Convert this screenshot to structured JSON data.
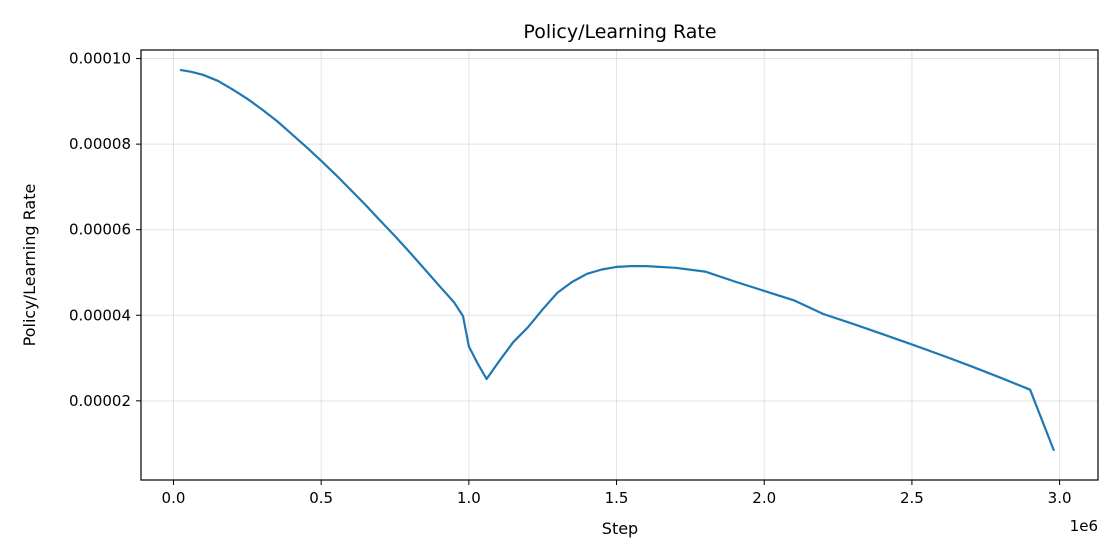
{
  "chart_data": {
    "type": "line",
    "title": "Policy/Learning Rate",
    "xlabel": "Step",
    "ylabel": "Policy/Learning Rate",
    "x_offset_label": "1e6",
    "xlim": [
      -110000,
      3130000
    ],
    "ylim": [
      1.5e-06,
      0.000102
    ],
    "x_ticks": [
      0,
      500000,
      1000000,
      1500000,
      2000000,
      2500000,
      3000000
    ],
    "x_tick_labels": [
      "0.0",
      "0.5",
      "1.0",
      "1.5",
      "2.0",
      "2.5",
      "3.0"
    ],
    "y_ticks": [
      2e-05,
      4e-05,
      6e-05,
      8e-05,
      0.0001
    ],
    "y_tick_labels": [
      "0.00002",
      "0.00004",
      "0.00006",
      "0.00008",
      "0.00010"
    ],
    "grid": true,
    "color": "#1f77b4",
    "series": [
      {
        "x": [
          25000,
          60000,
          100000,
          150000,
          200000,
          250000,
          300000,
          350000,
          400000,
          450000,
          500000,
          550000,
          600000,
          650000,
          700000,
          750000,
          800000,
          850000,
          900000,
          950000,
          980000,
          1000000,
          1030000,
          1060000,
          1100000,
          1150000,
          1200000,
          1250000,
          1300000,
          1350000,
          1400000,
          1450000,
          1500000,
          1550000,
          1600000,
          1700000,
          1800000,
          1900000,
          2000000,
          2100000,
          2200000,
          2300000,
          2400000,
          2500000,
          2600000,
          2700000,
          2800000,
          2900000,
          2980000
        ],
        "y": [
          9.73e-05,
          9.69e-05,
          9.62e-05,
          9.48e-05,
          9.28e-05,
          9.06e-05,
          8.81e-05,
          8.54e-05,
          8.24e-05,
          7.93e-05,
          7.61e-05,
          7.28e-05,
          6.93e-05,
          6.58e-05,
          6.21e-05,
          5.85e-05,
          5.47e-05,
          5.08e-05,
          4.69e-05,
          4.3e-05,
          3.98e-05,
          3.27e-05,
          2.87e-05,
          2.51e-05,
          2.9e-05,
          3.37e-05,
          3.72e-05,
          4.14e-05,
          4.53e-05,
          4.78e-05,
          4.97e-05,
          5.07e-05,
          5.13e-05,
          5.15e-05,
          5.15e-05,
          5.11e-05,
          5.02e-05,
          4.79e-05,
          4.57e-05,
          4.35e-05,
          4.03e-05,
          3.8e-05,
          3.56e-05,
          3.32e-05,
          3.07e-05,
          2.81e-05,
          2.54e-05,
          2.26e-05,
          8.5e-06
        ]
      }
    ]
  }
}
